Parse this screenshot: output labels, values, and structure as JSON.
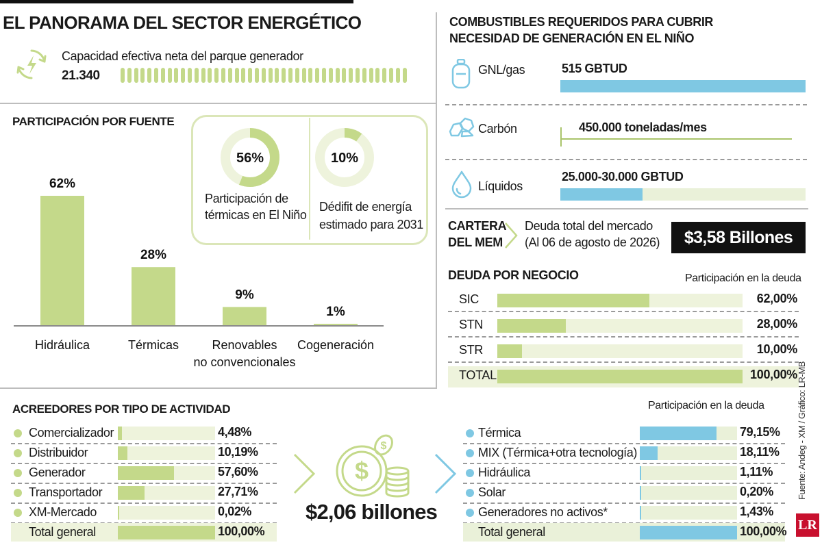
{
  "colors": {
    "green": "#c4d98a",
    "green_light": "#eef3dc",
    "blue": "#7fc8e3",
    "blue_light": "#eaf1d9",
    "dark": "#111111",
    "rule": "#bdbdbd"
  },
  "title": "EL PANORAMA DEL SECTOR ENERGÉTICO",
  "capacity": {
    "label": "Capacidad efectiva neta del parque generador",
    "value": "21.340",
    "icon": "renewable-energy-icon"
  },
  "participation": {
    "title": "PARTICIPACIÓN POR FUENTE",
    "chart_data": {
      "type": "bar",
      "categories": [
        "Hidráulica",
        "Térmicas",
        "Renovables no convencionales",
        "Cogeneración"
      ],
      "category_lines": [
        [
          "Hidráulica"
        ],
        [
          "Térmicas"
        ],
        [
          "Renovables",
          "no convencionales"
        ],
        [
          "Cogeneración"
        ]
      ],
      "values": [
        62,
        28,
        9,
        1
      ],
      "value_labels": [
        "62%",
        "28%",
        "9%",
        "1%"
      ],
      "unit": "%"
    }
  },
  "donuts": [
    {
      "value": 56,
      "label": "56%",
      "caption_lines": [
        "Participación de",
        "térmicas en El Niño"
      ]
    },
    {
      "value": 10,
      "label": "10%",
      "caption_lines": [
        "Dédifit de energía",
        "estimado para 2031"
      ]
    }
  ],
  "fuels": {
    "title_lines": [
      "COMBUSTIBLES REQUERIDOS PARA CUBRIR",
      "NECESIDAD DE GENERACIÓN EN EL NIÑO"
    ],
    "items": [
      {
        "name": "GNL/gas",
        "value": "515 GBTUD",
        "icon": "gas-cylinder-icon"
      },
      {
        "name": "Carbón",
        "value": "450.000 toneladas/mes",
        "icon": "coal-icon"
      },
      {
        "name": "Líquidos",
        "value": "25.000-30.000 GBTUD",
        "icon": "liquid-drop-icon"
      }
    ]
  },
  "cartera": {
    "label_lines": [
      "CARTERA",
      "DEL MEM"
    ],
    "desc_lines": [
      "Deuda total del mercado",
      "(Al 06 de agosto de 2026)"
    ],
    "total": "$3,58 Billones"
  },
  "deuda_negocio": {
    "title": "DEUDA POR NEGOCIO",
    "col_header": "Participación en la deuda",
    "chart_data": {
      "type": "bar",
      "categories": [
        "SIC",
        "STN",
        "STR",
        "TOTAL"
      ],
      "values": [
        62,
        28,
        10,
        100
      ],
      "value_labels": [
        "62,00%",
        "28,00%",
        "10,00%",
        "100,00%"
      ],
      "unit": "%"
    }
  },
  "acreedores": {
    "title": "ACREEDORES POR TIPO DE ACTIVIDAD",
    "chart_data": {
      "type": "bar",
      "categories": [
        "Comercializador",
        "Distribuidor",
        "Generador",
        "Transportador",
        "XM-Mercado",
        "Total general"
      ],
      "values": [
        4.48,
        10.19,
        57.6,
        27.71,
        0.02,
        100
      ],
      "value_labels": [
        "4,48%",
        "10,19%",
        "57,60%",
        "27,71%",
        "0,02%",
        "100,00%"
      ],
      "unit": "%"
    }
  },
  "center": {
    "amount": "$2,06 billones",
    "icon": "coins-dollar-icon"
  },
  "tecnologia": {
    "col_header": "Participación en la deuda",
    "chart_data": {
      "type": "bar",
      "categories": [
        "Térmica",
        "MIX (Térmica+otra tecnología)",
        "Hidráulica",
        "Solar",
        "Generadores no activos*",
        "Total general"
      ],
      "values": [
        79.15,
        18.11,
        1.11,
        0.2,
        1.43,
        100
      ],
      "value_labels": [
        "79,15%",
        "18,11%",
        "1,11%",
        "0,20%",
        "1,43%",
        "100,00%"
      ],
      "unit": "%"
    }
  },
  "source": "Fuente: Andeg - XM / Gráfico: LR-MB",
  "logo": "LR"
}
